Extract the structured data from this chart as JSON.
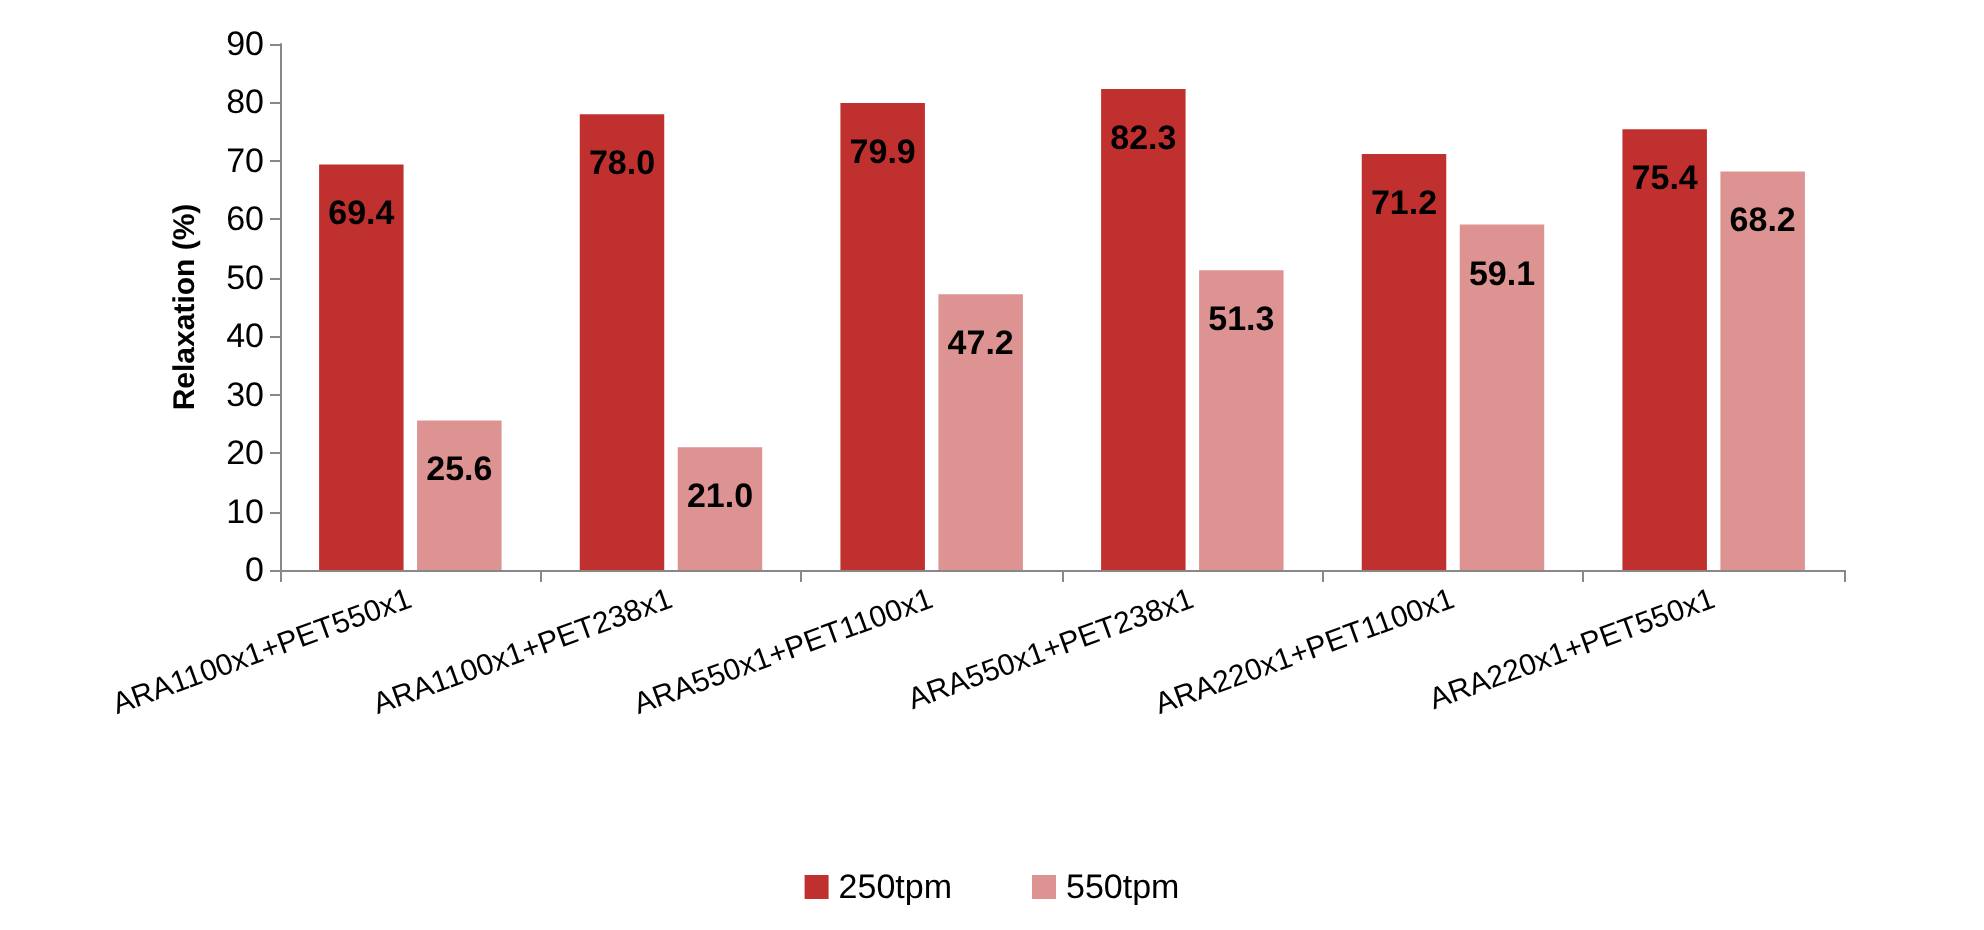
{
  "chart_data": {
    "type": "bar",
    "ylabel": "Relaxation (%)",
    "categories": [
      "ARA1100x1+PET550x1",
      "ARA1100x1+PET238x1",
      "ARA550x1+PET1100x1",
      "ARA550x1+PET238x1",
      "ARA220x1+PET1100x1",
      "ARA220x1+PET550x1"
    ],
    "series": [
      {
        "name": "250tpm",
        "color": "#c0302e",
        "values": [
          69.4,
          78.0,
          79.9,
          82.3,
          71.2,
          75.4
        ],
        "value_labels": [
          "69.4",
          "78.0",
          "79.9",
          "82.3",
          "71.2",
          "75.4"
        ]
      },
      {
        "name": "550tpm",
        "color": "#dc9391",
        "values": [
          25.6,
          21.0,
          47.2,
          51.3,
          59.1,
          68.2
        ],
        "value_labels": [
          "25.6",
          "21.0",
          "47.2",
          "51.3",
          "59.1",
          "68.2"
        ]
      }
    ],
    "ylim": [
      0,
      90
    ],
    "yticks": [
      0,
      10,
      20,
      30,
      40,
      50,
      60,
      70,
      80,
      90
    ],
    "grid": false,
    "legend": "bottom"
  }
}
